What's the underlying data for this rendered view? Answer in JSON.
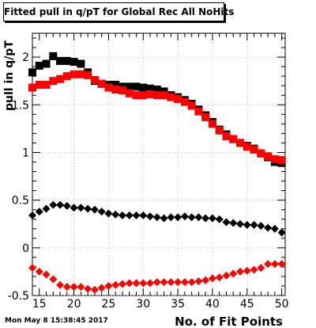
{
  "chart_data": {
    "type": "scatter",
    "title": "Fitted pull in q/pT for Global Rec All NoHits",
    "xlabel": "No. of Fit Points",
    "ylabel": "pull in q/pT",
    "xlim": [
      14,
      50.5
    ],
    "ylim": [
      -0.5,
      2.25
    ],
    "xticks": [
      15,
      20,
      25,
      30,
      35,
      40,
      45,
      50
    ],
    "yticks": [
      -0.5,
      0,
      0.5,
      1,
      1.5,
      2
    ],
    "x": [
      14,
      15,
      16,
      17,
      18,
      19,
      20,
      21,
      22,
      23,
      24,
      25,
      26,
      27,
      28,
      29,
      30,
      31,
      32,
      33,
      34,
      35,
      36,
      37,
      38,
      39,
      40,
      41,
      42,
      43,
      44,
      45,
      46,
      47,
      48,
      49,
      50
    ],
    "series": [
      {
        "color": "#000000",
        "marker": "square",
        "values": [
          1.84,
          1.91,
          1.93,
          2.01,
          1.96,
          1.96,
          1.95,
          1.93,
          1.84,
          1.75,
          1.72,
          1.71,
          1.71,
          1.69,
          1.69,
          1.69,
          1.68,
          1.67,
          1.66,
          1.64,
          1.6,
          1.58,
          1.55,
          1.51,
          1.45,
          1.39,
          1.32,
          1.24,
          1.19,
          1.14,
          1.1,
          1.07,
          1.04,
          0.99,
          0.95,
          0.9,
          0.89
        ]
      },
      {
        "color": "#ff0000",
        "marker": "square",
        "values": [
          1.68,
          1.71,
          1.71,
          1.75,
          1.77,
          1.8,
          1.82,
          1.82,
          1.81,
          1.76,
          1.72,
          1.68,
          1.66,
          1.65,
          1.62,
          1.6,
          1.6,
          1.61,
          1.6,
          1.6,
          1.58,
          1.56,
          1.53,
          1.49,
          1.43,
          1.37,
          1.3,
          1.23,
          1.17,
          1.14,
          1.1,
          1.06,
          1.03,
          0.99,
          0.96,
          0.93,
          0.92
        ]
      },
      {
        "color": "#000000",
        "marker": "diamond",
        "values": [
          0.34,
          0.38,
          0.41,
          0.45,
          0.45,
          0.44,
          0.42,
          0.42,
          0.41,
          0.4,
          0.38,
          0.36,
          0.35,
          0.34,
          0.34,
          0.34,
          0.34,
          0.33,
          0.32,
          0.31,
          0.32,
          0.32,
          0.33,
          0.32,
          0.32,
          0.31,
          0.31,
          0.3,
          0.27,
          0.26,
          0.25,
          0.24,
          0.24,
          0.23,
          0.21,
          0.2,
          0.16
        ]
      },
      {
        "color": "#ff0000",
        "marker": "diamond",
        "values": [
          -0.21,
          -0.25,
          -0.28,
          -0.33,
          -0.39,
          -0.41,
          -0.41,
          -0.41,
          -0.43,
          -0.44,
          -0.42,
          -0.4,
          -0.39,
          -0.38,
          -0.37,
          -0.37,
          -0.37,
          -0.37,
          -0.36,
          -0.36,
          -0.36,
          -0.36,
          -0.36,
          -0.36,
          -0.35,
          -0.34,
          -0.32,
          -0.31,
          -0.29,
          -0.27,
          -0.25,
          -0.24,
          -0.23,
          -0.21,
          -0.17,
          -0.17,
          -0.17
        ]
      }
    ]
  },
  "timestamp": "Mon May  8 15:38:45 2017"
}
